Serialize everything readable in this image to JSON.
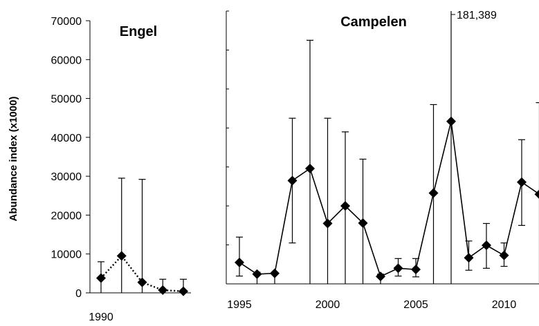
{
  "chart_data": {
    "type": "line",
    "ylabel": "Abundance index (x1000)",
    "ylim": [
      0,
      70000
    ],
    "yticks": [
      0,
      10000,
      20000,
      30000,
      40000,
      50000,
      60000,
      70000
    ],
    "panels": [
      {
        "title": "Engel",
        "line_style": "dotted",
        "xlim": [
          1989.5,
          1995
        ],
        "xticks": [
          1990
        ],
        "x": [
          1990,
          1991,
          1992,
          1993,
          1994
        ],
        "values": [
          3800,
          9500,
          2700,
          700,
          400
        ],
        "err_low": [
          0,
          0,
          0,
          0,
          0
        ],
        "err_high": [
          8000,
          29500,
          29200,
          3500,
          3500
        ]
      },
      {
        "title": "Campelen",
        "line_style": "solid",
        "xlim": [
          1994.5,
          2012.7
        ],
        "xticks": [
          1995,
          2000,
          2005,
          2010
        ],
        "x": [
          1995,
          1996,
          1997,
          1998,
          1999,
          2000,
          2001,
          2002,
          2003,
          2004,
          2005,
          2006,
          2007,
          2008,
          2009,
          2010,
          2011,
          2012
        ],
        "values": [
          5500,
          2500,
          2700,
          26500,
          29600,
          15500,
          20000,
          15600,
          1900,
          4000,
          3700,
          23300,
          41700,
          6700,
          9900,
          7300,
          26100,
          23000
        ],
        "err_low": [
          2000,
          0,
          0,
          10500,
          0,
          0,
          0,
          0,
          0,
          2000,
          1800,
          0,
          0,
          3500,
          4000,
          4500,
          15000,
          0
        ],
        "err_high": [
          12000,
          3000,
          3000,
          42500,
          62500,
          42500,
          39000,
          32000,
          2500,
          6500,
          6500,
          46000,
          181389,
          11000,
          15500,
          10500,
          37000,
          46500
        ],
        "annotation": "181,389"
      }
    ]
  }
}
